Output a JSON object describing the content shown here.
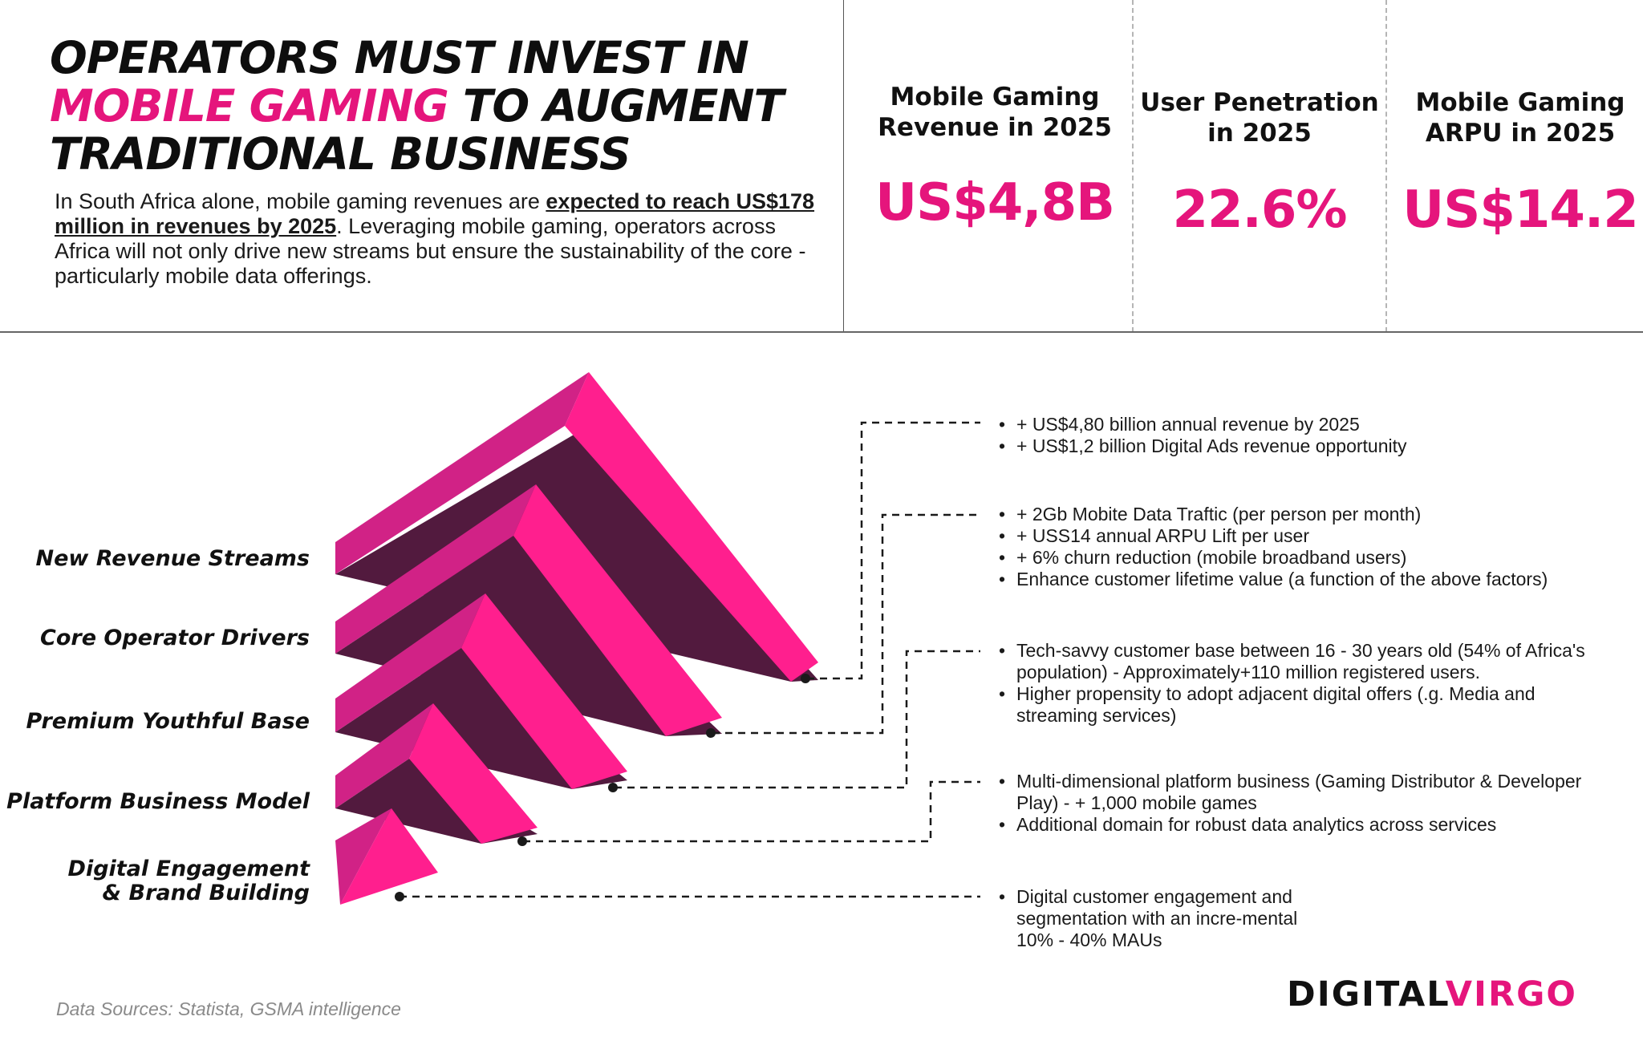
{
  "colors": {
    "accent": "#e5157c",
    "staircase_dark": "#521a3e",
    "staircase_pink": "#ff1f8e",
    "staircase_side": "#d12286"
  },
  "header": {
    "title_line1": "OPERATORS MUST INVEST IN",
    "title_line2_accent": "MOBILE GAMING",
    "title_line2_rest": " TO AUGMENT",
    "title_line3": "TRADITIONAL BUSINESS",
    "intro_part1": "In South Africa alone, mobile gaming revenues are ",
    "intro_emphasis": "expected to reach US$178 million in revenues by 2025",
    "intro_part2": ". Leveraging mobile gaming, operators across Africa will not only drive new streams but ensure the sustainability of the core - particularly mobile data offerings."
  },
  "stats": [
    {
      "label": "Mobile Gaming Revenue in 2025",
      "value": "US$4,8B"
    },
    {
      "label": "User Penetration in 2025",
      "value": "22.6%"
    },
    {
      "label": "Mobile Gaming ARPU in 2025",
      "value": "US$14.2"
    }
  ],
  "staircase": {
    "levels": [
      {
        "label": "New Revenue Streams",
        "bullets": [
          "+ US$4,80 billion annual revenue by 2025",
          "+ US$1,2 billion Digital Ads revenue opportunity"
        ]
      },
      {
        "label": "Core Operator Drivers",
        "bullets": [
          "+ 2Gb Mobite Data Traftic (per person per month)",
          "+ USS14 annual ARPU Lift per user",
          "+ 6% churn reduction (mobile broadband users)",
          "Enhance customer lifetime value (a function of the above factors)"
        ]
      },
      {
        "label": "Premium Youthful Base",
        "bullets": [
          "Tech-savvy customer base between 16 - 30 years old (54% of Africa's population) - Approximately+110 million registered users.",
          "Higher propensity to adopt adjacent digital offers (.g. Media and streaming services)"
        ]
      },
      {
        "label": "Platform Business Model",
        "bullets": [
          "Multi-dimensional platform business (Gaming Distributor & Developer Play) - + 1,000 mobile games",
          "Additional domain for robust data analytics across services"
        ]
      },
      {
        "label": "Digital Engagement & Brand Building",
        "bullets": [
          "Digital customer engagement and segmentation with an incre-mental 10% - 40% MAUs"
        ]
      }
    ]
  },
  "footer": {
    "sources": "Data Sources: Statista, GSMA intelligence",
    "logo_part1": "DIGITAL",
    "logo_part2": "VIRGO"
  }
}
